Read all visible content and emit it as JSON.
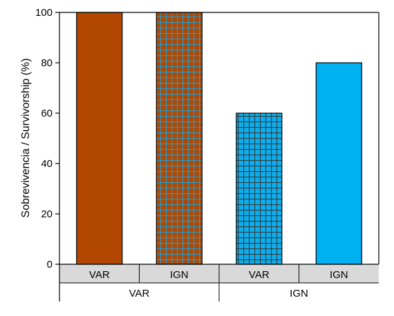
{
  "chart_data": {
    "type": "bar",
    "title": "",
    "ylabel": "Sobrevivencia / Survivorship (%)",
    "xlabel": "",
    "ylim": [
      0,
      100
    ],
    "yticks": [
      0,
      20,
      40,
      60,
      80,
      100
    ],
    "grid": false,
    "legend": "none",
    "bars": [
      {
        "inner": "VAR",
        "outer": "VAR",
        "value": 100,
        "color": "#b24700",
        "pattern": "solid"
      },
      {
        "inner": "IGN",
        "outer": "VAR",
        "value": 100,
        "color": "#b24700",
        "pattern": "grid",
        "grid_color": "#1a9fd6"
      },
      {
        "inner": "VAR",
        "outer": "IGN",
        "value": 60,
        "color": "#0aaff0",
        "pattern": "grid",
        "grid_color": "#3a3a3a"
      },
      {
        "inner": "IGN",
        "outer": "IGN",
        "value": 80,
        "color": "#00b0f0",
        "pattern": "solid"
      }
    ],
    "categories": [
      "VAR",
      "IGN",
      "VAR",
      "IGN"
    ],
    "groups": [
      "VAR",
      "IGN"
    ],
    "inner_axis_band_color": "#d9d9d9"
  }
}
